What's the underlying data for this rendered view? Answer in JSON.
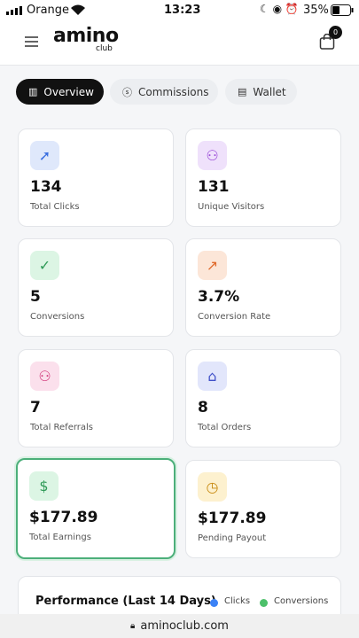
{
  "status_bar": {
    "carrier": "Orange",
    "time": "13:23",
    "battery": "35%"
  },
  "header": {
    "logo": "amino",
    "logo_sub": "club",
    "cart_count": "0"
  },
  "tabs": [
    "Overview",
    "Commissions",
    "Wallet"
  ],
  "stats": [
    {
      "value": "134",
      "label": "Total Clicks"
    },
    {
      "value": "131",
      "label": "Unique Visitors"
    },
    {
      "value": "5",
      "label": "Conversions"
    },
    {
      "value": "3.7%",
      "label": "Conversion Rate"
    },
    {
      "value": "7",
      "label": "Total Referrals"
    },
    {
      "value": "8",
      "label": "Total Orders"
    },
    {
      "value": "$177.89",
      "label": "Total Earnings"
    },
    {
      "value": "$177.89",
      "label": "Pending Payout"
    }
  ],
  "performance": {
    "title": "Performance (Last 14 Days)",
    "legend": [
      "Clicks",
      "Conversions"
    ]
  },
  "browser": {
    "url": "aminoclub.com"
  }
}
